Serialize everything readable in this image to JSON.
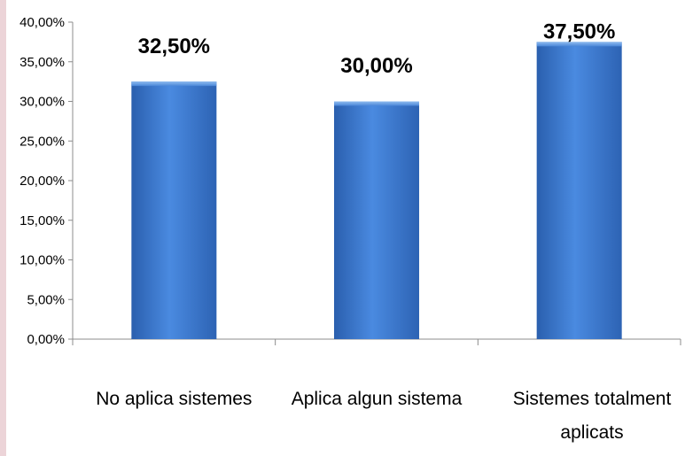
{
  "chart_data": {
    "type": "bar",
    "categories": [
      [
        "No aplica sistemes"
      ],
      [
        "Aplica algun sistema"
      ],
      [
        "Sistemes totalment",
        "aplicats"
      ]
    ],
    "values": [
      32.5,
      30.0,
      37.5
    ],
    "data_labels": [
      "32,50%",
      "30,00%",
      "37,50%"
    ],
    "yticks": [
      0,
      5,
      10,
      15,
      20,
      25,
      30,
      35,
      40
    ],
    "ytick_labels": [
      "0,00%",
      "5,00%",
      "10,00%",
      "15,00%",
      "20,00%",
      "25,00%",
      "30,00%",
      "35,00%",
      "40,00%"
    ],
    "ylim": [
      0,
      40
    ],
    "title": "",
    "xlabel": "",
    "ylabel": "",
    "grid": false,
    "legend": "none",
    "bar_color": "#3f7fd6"
  }
}
